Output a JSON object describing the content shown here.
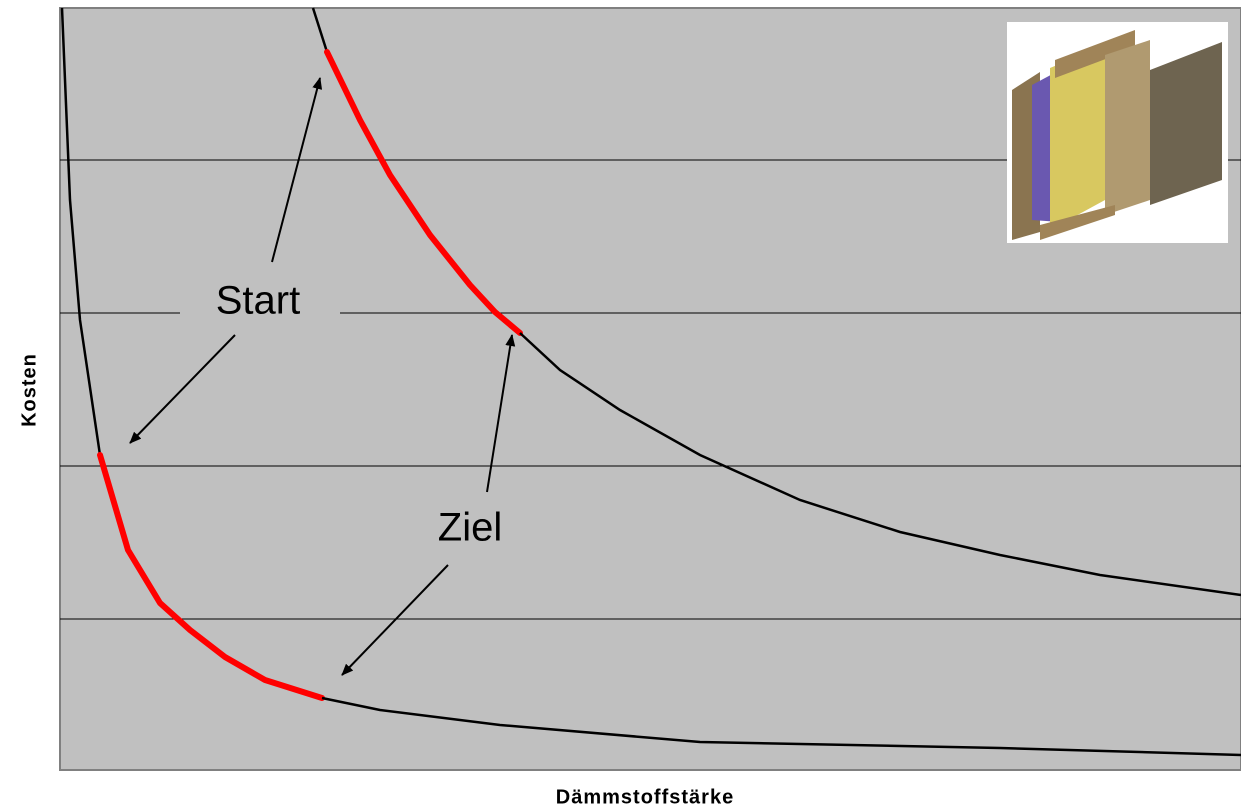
{
  "y_axis_label": "Kosten",
  "x_axis_label": "Dämmstoffstärke",
  "annotations": {
    "start": "Start",
    "goal": "Ziel"
  }
}
